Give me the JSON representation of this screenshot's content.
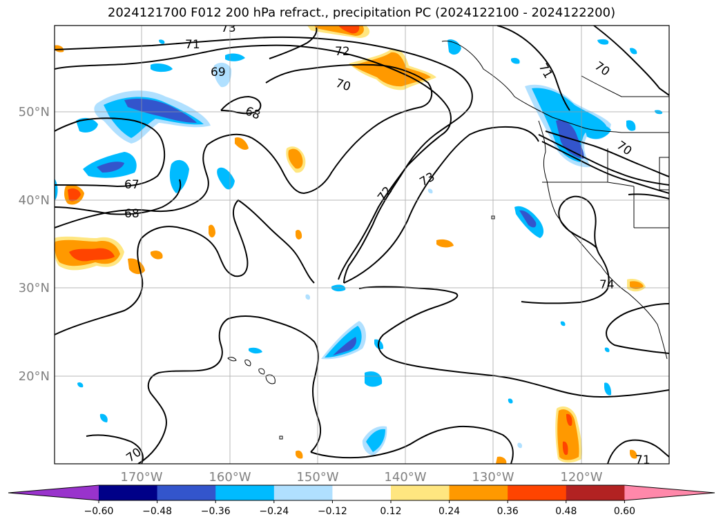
{
  "title": "2024121700 F012 200 hPa refract., precipitation PC (2024122100 - 2024122200)",
  "map": {
    "lat_ticks": [
      "50°N",
      "40°N",
      "30°N",
      "20°N"
    ],
    "lon_ticks": [
      "170°W",
      "160°W",
      "150°W",
      "140°W",
      "130°W",
      "120°W"
    ],
    "contour_labels": [
      "73",
      "71",
      "69",
      "72",
      "70",
      "68",
      "67",
      "68",
      "72",
      "73",
      "71",
      "70",
      "70",
      "74",
      "70",
      "71"
    ]
  },
  "colorbar": {
    "ticks": [
      "−0.60",
      "−0.48",
      "−0.36",
      "−0.24",
      "−0.12",
      "0.12",
      "0.24",
      "0.36",
      "0.48",
      "0.60"
    ],
    "colors": [
      "#9933cc",
      "#000088",
      "#3355cc",
      "#00bbff",
      "#b0e0ff",
      "#ffffff",
      "#ffe680",
      "#ff9900",
      "#ff4400",
      "#b22222",
      "#ff88aa"
    ]
  }
}
